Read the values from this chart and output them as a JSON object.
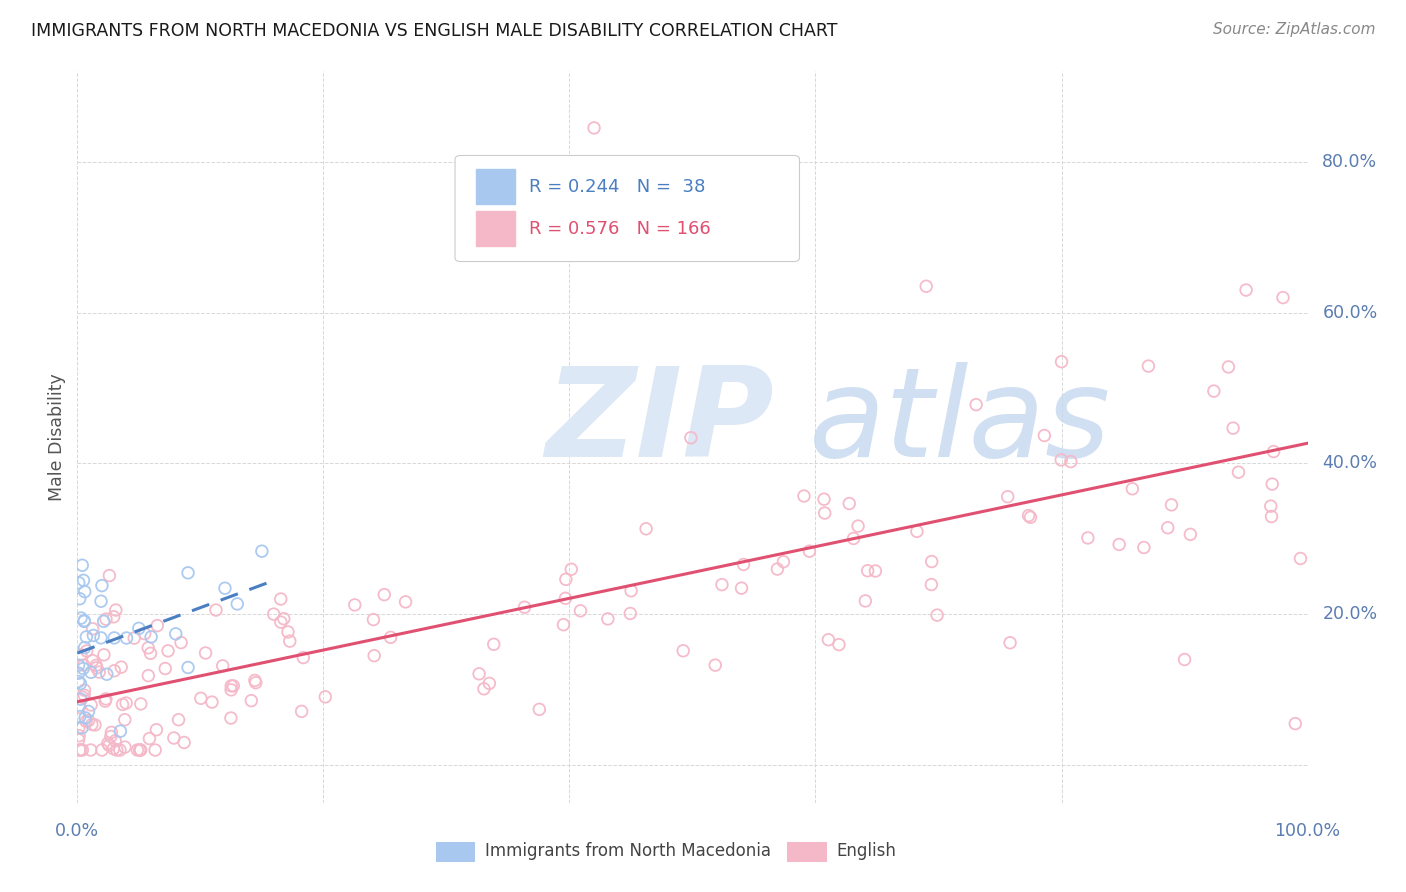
{
  "title": "IMMIGRANTS FROM NORTH MACEDONIA VS ENGLISH MALE DISABILITY CORRELATION CHART",
  "source": "Source: ZipAtlas.com",
  "ylabel": "Male Disability",
  "xlim": [
    0.0,
    1.0
  ],
  "ylim": [
    -0.05,
    0.92
  ],
  "ytick_vals": [
    0.0,
    0.2,
    0.4,
    0.6,
    0.8
  ],
  "ytick_labels": [
    "",
    "20.0%",
    "40.0%",
    "60.0%",
    "80.0%"
  ],
  "xtick_vals": [
    0.0,
    1.0
  ],
  "xtick_labels": [
    "0.0%",
    "100.0%"
  ],
  "legend_r1": "R = 0.244",
  "legend_n1": "N =  38",
  "legend_r2": "R = 0.576",
  "legend_n2": "N = 166",
  "blue_scatter_color": "#a8c8f0",
  "pink_scatter_color": "#f5b8c8",
  "blue_line_color": "#4a7fc1",
  "pink_line_color": "#e05070",
  "axis_label_color": "#5b7db1",
  "grid_color": "#d8d8d8",
  "title_color": "#1a1a1a",
  "source_color": "#888888",
  "ylabel_color": "#555555",
  "bottom_label_color": "#444444",
  "legend_text_blue": "#4a7fc1",
  "legend_text_pink": "#e05070"
}
